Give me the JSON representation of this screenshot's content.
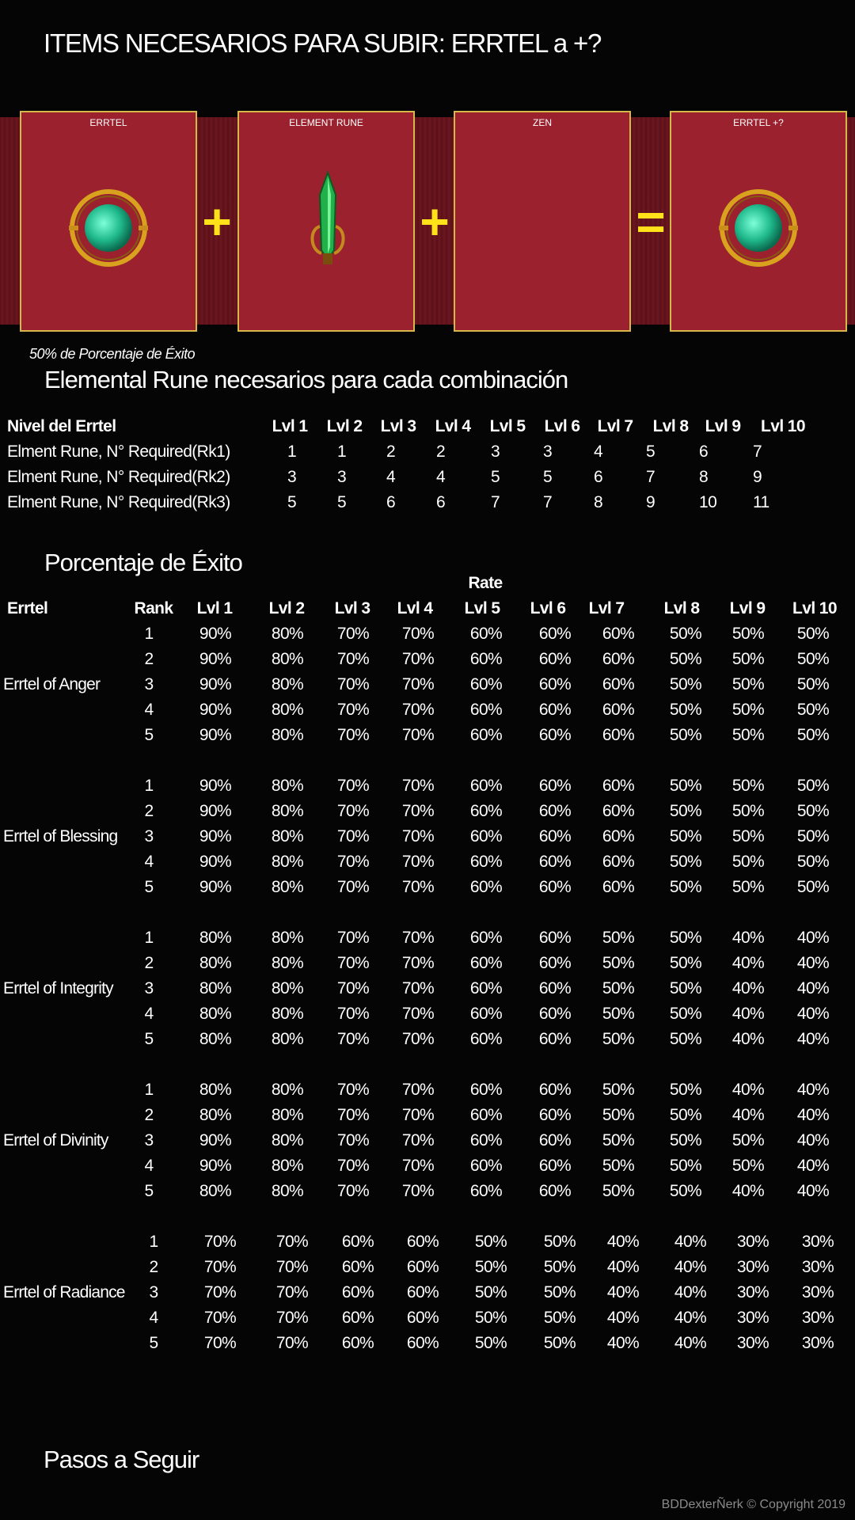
{
  "title": "ITEMS NECESARIOS PARA  SUBIR: ERRTEL a +?",
  "combination": {
    "slots": [
      {
        "label": "ERRTEL",
        "icon": "errtel-gem-icon"
      },
      {
        "label": "ELEMENT RUNE",
        "icon": "element-rune-icon"
      },
      {
        "label": "ZEN",
        "icon": ""
      },
      {
        "label": "ERRTEL +?",
        "icon": "errtel-gem-icon"
      }
    ],
    "operators": [
      "+",
      "+",
      "="
    ]
  },
  "success_note": "50% de Porcentaje de Éxito",
  "rune_section": {
    "title": "Elemental Rune necesarios para cada combinación",
    "header_label": "Nivel del Errtel",
    "levels": [
      "Lvl 1",
      "Lvl 2",
      "Lvl 3",
      "Lvl 4",
      "Lvl 5",
      "Lvl 6",
      "Lvl 7",
      "Lvl 8",
      "Lvl 9",
      "Lvl 10"
    ],
    "rows": [
      {
        "label": "Elment Rune, N° Required(Rk1)",
        "values": [
          "1",
          "1",
          "2",
          "2",
          "3",
          "3",
          "4",
          "5",
          "6",
          "7"
        ]
      },
      {
        "label": "Elment Rune, N° Required(Rk2)",
        "values": [
          "3",
          "3",
          "4",
          "4",
          "5",
          "5",
          "6",
          "7",
          "8",
          "9"
        ]
      },
      {
        "label": "Elment Rune, N° Required(Rk3)",
        "values": [
          "5",
          "5",
          "6",
          "6",
          "7",
          "7",
          "8",
          "9",
          "10",
          "11"
        ]
      }
    ]
  },
  "rate_section": {
    "title": "Porcentaje de Éxito",
    "rate_label": "Rate",
    "col_errtel": "Errtel",
    "col_rank": "Rank",
    "levels": [
      "Lvl 1",
      "Lvl 2",
      "Lvl 3",
      "Lvl 4",
      "Lvl 5",
      "Lvl 6",
      "Lvl 7",
      "Lvl 8",
      "Lvl 9",
      "Lvl 10"
    ],
    "groups": [
      {
        "name": "Errtel of Anger",
        "rows": [
          {
            "rank": "1",
            "values": [
              "90%",
              "80%",
              "70%",
              "70%",
              "60%",
              "60%",
              "60%",
              "50%",
              "50%",
              "50%"
            ]
          },
          {
            "rank": "2",
            "values": [
              "90%",
              "80%",
              "70%",
              "70%",
              "60%",
              "60%",
              "60%",
              "50%",
              "50%",
              "50%"
            ]
          },
          {
            "rank": "3",
            "values": [
              "90%",
              "80%",
              "70%",
              "70%",
              "60%",
              "60%",
              "60%",
              "50%",
              "50%",
              "50%"
            ]
          },
          {
            "rank": "4",
            "values": [
              "90%",
              "80%",
              "70%",
              "70%",
              "60%",
              "60%",
              "60%",
              "50%",
              "50%",
              "50%"
            ]
          },
          {
            "rank": "5",
            "values": [
              "90%",
              "80%",
              "70%",
              "70%",
              "60%",
              "60%",
              "60%",
              "50%",
              "50%",
              "50%"
            ]
          }
        ]
      },
      {
        "name": "Errtel of Blessing",
        "rows": [
          {
            "rank": "1",
            "values": [
              "90%",
              "80%",
              "70%",
              "70%",
              "60%",
              "60%",
              "60%",
              "50%",
              "50%",
              "50%"
            ]
          },
          {
            "rank": "2",
            "values": [
              "90%",
              "80%",
              "70%",
              "70%",
              "60%",
              "60%",
              "60%",
              "50%",
              "50%",
              "50%"
            ]
          },
          {
            "rank": "3",
            "values": [
              "90%",
              "80%",
              "70%",
              "70%",
              "60%",
              "60%",
              "60%",
              "50%",
              "50%",
              "50%"
            ]
          },
          {
            "rank": "4",
            "values": [
              "90%",
              "80%",
              "70%",
              "70%",
              "60%",
              "60%",
              "60%",
              "50%",
              "50%",
              "50%"
            ]
          },
          {
            "rank": "5",
            "values": [
              "90%",
              "80%",
              "70%",
              "70%",
              "60%",
              "60%",
              "60%",
              "50%",
              "50%",
              "50%"
            ]
          }
        ]
      },
      {
        "name": "Errtel of Integrity",
        "rows": [
          {
            "rank": "1",
            "values": [
              "80%",
              "80%",
              "70%",
              "70%",
              "60%",
              "60%",
              "50%",
              "50%",
              "40%",
              "40%"
            ]
          },
          {
            "rank": "2",
            "values": [
              "80%",
              "80%",
              "70%",
              "70%",
              "60%",
              "60%",
              "50%",
              "50%",
              "40%",
              "40%"
            ]
          },
          {
            "rank": "3",
            "values": [
              "80%",
              "80%",
              "70%",
              "70%",
              "60%",
              "60%",
              "50%",
              "50%",
              "40%",
              "40%"
            ]
          },
          {
            "rank": "4",
            "values": [
              "80%",
              "80%",
              "70%",
              "70%",
              "60%",
              "60%",
              "50%",
              "50%",
              "40%",
              "40%"
            ]
          },
          {
            "rank": "5",
            "values": [
              "80%",
              "80%",
              "70%",
              "70%",
              "60%",
              "60%",
              "50%",
              "50%",
              "40%",
              "40%"
            ]
          }
        ]
      },
      {
        "name": "Errtel of Divinity",
        "rows": [
          {
            "rank": "1",
            "values": [
              "80%",
              "80%",
              "70%",
              "70%",
              "60%",
              "60%",
              "50%",
              "50%",
              "40%",
              "40%"
            ]
          },
          {
            "rank": "2",
            "values": [
              "80%",
              "80%",
              "70%",
              "70%",
              "60%",
              "60%",
              "50%",
              "50%",
              "40%",
              "40%"
            ]
          },
          {
            "rank": "3",
            "values": [
              "90%",
              "80%",
              "70%",
              "70%",
              "60%",
              "60%",
              "50%",
              "50%",
              "50%",
              "40%"
            ]
          },
          {
            "rank": "4",
            "values": [
              "90%",
              "80%",
              "70%",
              "70%",
              "60%",
              "60%",
              "50%",
              "50%",
              "50%",
              "40%"
            ]
          },
          {
            "rank": "5",
            "values": [
              "80%",
              "80%",
              "70%",
              "70%",
              "60%",
              "60%",
              "50%",
              "50%",
              "40%",
              "40%"
            ]
          }
        ]
      },
      {
        "name": "Errtel of Radiance",
        "rows": [
          {
            "rank": "1",
            "values": [
              "70%",
              "70%",
              "60%",
              "60%",
              "50%",
              "50%",
              "40%",
              "40%",
              "30%",
              "30%"
            ]
          },
          {
            "rank": "2",
            "values": [
              "70%",
              "70%",
              "60%",
              "60%",
              "50%",
              "50%",
              "40%",
              "40%",
              "30%",
              "30%"
            ]
          },
          {
            "rank": "3",
            "values": [
              "70%",
              "70%",
              "60%",
              "60%",
              "50%",
              "50%",
              "40%",
              "40%",
              "30%",
              "30%"
            ]
          },
          {
            "rank": "4",
            "values": [
              "70%",
              "70%",
              "60%",
              "60%",
              "50%",
              "50%",
              "40%",
              "40%",
              "30%",
              "30%"
            ]
          },
          {
            "rank": "5",
            "values": [
              "70%",
              "70%",
              "60%",
              "60%",
              "50%",
              "50%",
              "40%",
              "40%",
              "30%",
              "30%"
            ]
          }
        ]
      }
    ]
  },
  "steps_title": "Pasos a Seguir",
  "footer": "BDDexterÑerk © Copyright 2019",
  "colors": {
    "slot": "#9b212f",
    "slot_border": "#d6b84a",
    "operator": "#ffe21a",
    "band": "#5a1018"
  }
}
